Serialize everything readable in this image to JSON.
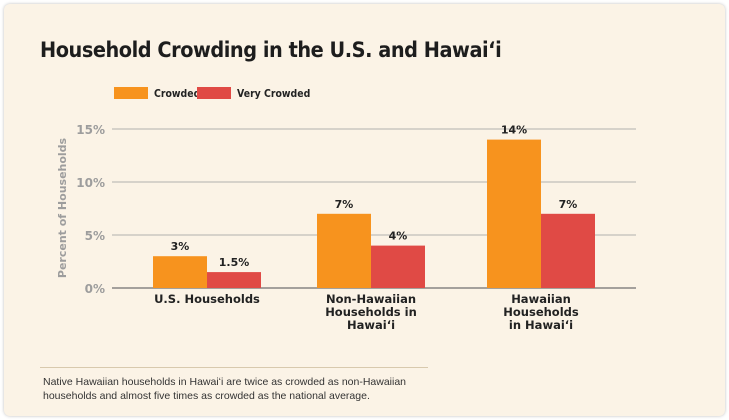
{
  "chart_data": {
    "type": "bar",
    "title": "Household Crowding in the U.S. and Hawaiʻi",
    "ylabel": "Percent of Households",
    "xlabel": "",
    "ylim": [
      0,
      15
    ],
    "yticks": [
      0,
      5,
      10,
      15
    ],
    "ytick_labels": [
      "0%",
      "5%",
      "10%",
      "15%"
    ],
    "categories": [
      [
        "U.S. Households"
      ],
      [
        "Non-Hawaiian",
        "Households in",
        "Hawaiʻi"
      ],
      [
        "Hawaiian",
        "Households",
        "in Hawaiʻi"
      ]
    ],
    "series": [
      {
        "name": "Crowded",
        "color": "#f7931e",
        "values": [
          3,
          7,
          14
        ],
        "labels": [
          "3%",
          "7%",
          "14%"
        ]
      },
      {
        "name": "Very Crowded",
        "color": "#e04a45",
        "values": [
          1.5,
          4,
          7
        ],
        "labels": [
          "1.5%",
          "4%",
          "7%"
        ]
      }
    ],
    "grid": true,
    "legend": "top-left"
  },
  "footnote": "Native Hawaiian households in Hawaiʻi are twice as crowded as non-Hawaiian households and almost five times as crowded as the national average."
}
